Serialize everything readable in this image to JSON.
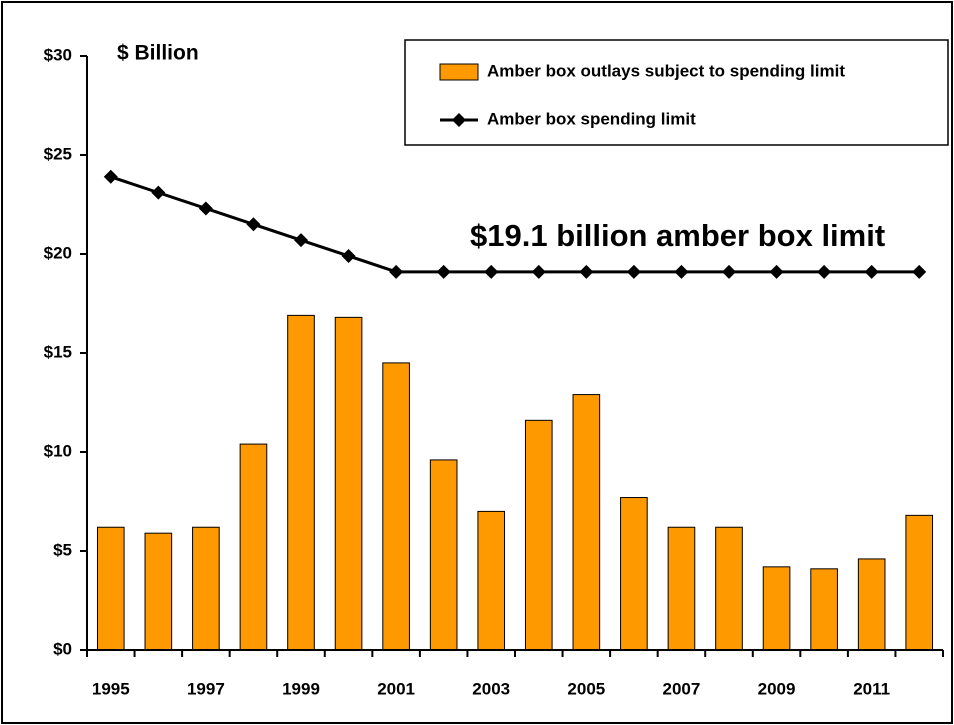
{
  "chart_data": {
    "type": "bar",
    "y_unit_label": "$ Billion",
    "annotation": "$19.1 billion amber box limit",
    "categories": [
      "1995",
      null,
      "1997",
      null,
      "1999",
      null,
      "2001",
      null,
      "2003",
      null,
      "2005",
      null,
      "2007",
      null,
      "2009",
      null,
      "2011",
      null
    ],
    "series": [
      {
        "name": "Amber box outlays subject to spending limit",
        "type": "bar",
        "color": "#ff9900",
        "values": [
          6.2,
          5.9,
          6.2,
          10.4,
          16.9,
          16.8,
          14.5,
          9.6,
          7.0,
          11.6,
          12.9,
          7.7,
          6.2,
          6.2,
          4.2,
          4.1,
          4.6,
          6.8
        ]
      },
      {
        "name": "Amber box spending limit",
        "type": "line",
        "color": "#000000",
        "values": [
          23.9,
          23.1,
          22.3,
          21.5,
          20.7,
          19.9,
          19.1,
          19.1,
          19.1,
          19.1,
          19.1,
          19.1,
          19.1,
          19.1,
          19.1,
          19.1,
          19.1,
          19.1
        ]
      }
    ],
    "ylim": [
      0,
      30
    ],
    "yticks": [
      {
        "value": 0,
        "label": "$0"
      },
      {
        "value": 5,
        "label": "$5"
      },
      {
        "value": 10,
        "label": "$10"
      },
      {
        "value": 15,
        "label": "$15"
      },
      {
        "value": 20,
        "label": "$20"
      },
      {
        "value": 25,
        "label": "$25"
      },
      {
        "value": 30,
        "label": "$30"
      }
    ],
    "legend": "top-right"
  }
}
